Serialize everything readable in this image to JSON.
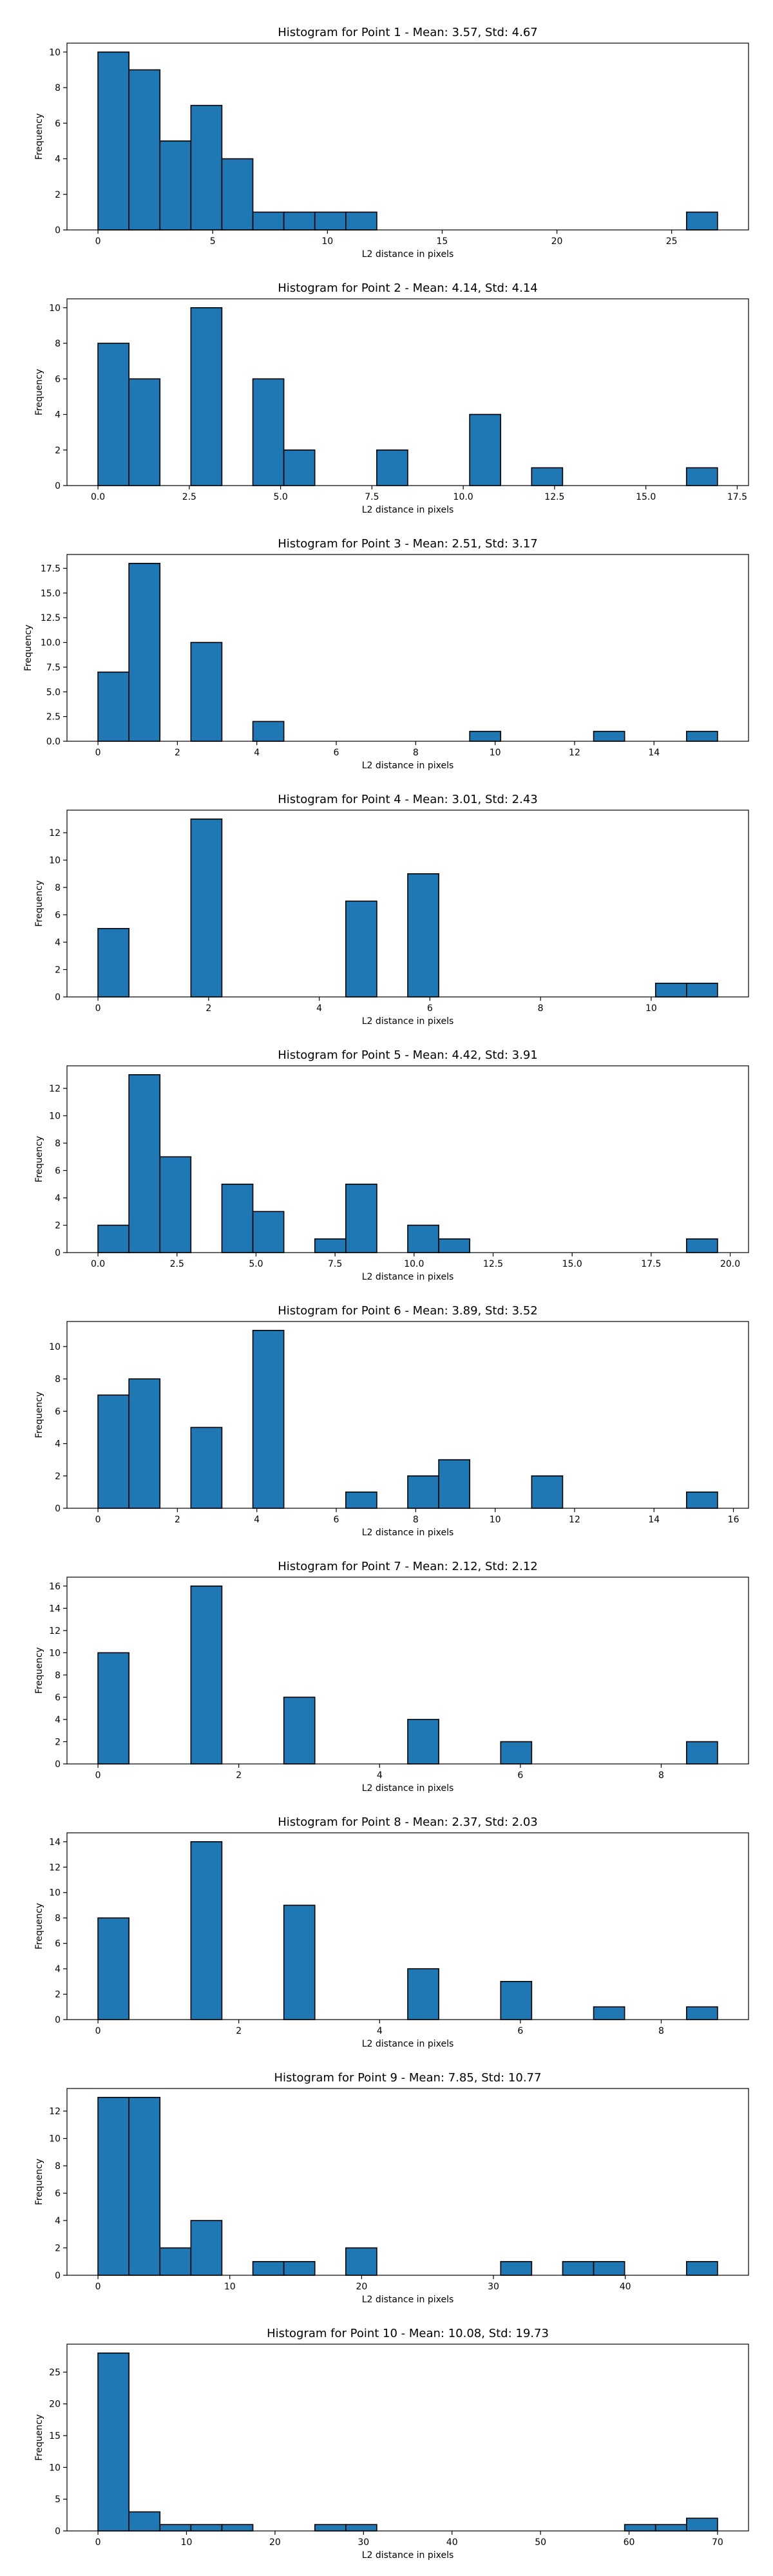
{
  "chart_data": [
    {
      "type": "bar",
      "title": "Histogram for Point 1 - Mean: 3.57, Std: 4.67",
      "xlabel": "L2 distance in pixels",
      "ylabel": "Frequency",
      "bin_start": 0.0,
      "bin_width": 1.35,
      "counts": [
        10,
        9,
        5,
        7,
        4,
        1,
        1,
        1,
        1,
        0,
        0,
        0,
        0,
        0,
        0,
        0,
        0,
        0,
        0,
        1
      ],
      "xlim": [
        -1.35,
        28.35
      ],
      "ylim": [
        0,
        10.5
      ],
      "xticks": [
        0,
        5,
        10,
        15,
        20,
        25
      ],
      "xtick_labels": [
        "0",
        "5",
        "10",
        "15",
        "20",
        "25"
      ],
      "yticks": [
        0,
        2,
        4,
        6,
        8,
        10
      ],
      "ytick_labels": [
        "0",
        "2",
        "4",
        "6",
        "8",
        "10"
      ],
      "bar_color": "#1f77b4"
    },
    {
      "type": "bar",
      "title": "Histogram for Point 2 - Mean: 4.14, Std: 4.14",
      "xlabel": "L2 distance in pixels",
      "ylabel": "Frequency",
      "bin_start": 0.0,
      "bin_width": 0.848,
      "counts": [
        8,
        6,
        0,
        10,
        0,
        6,
        2,
        0,
        0,
        2,
        0,
        0,
        4,
        0,
        1,
        0,
        0,
        0,
        0,
        1
      ],
      "xlim": [
        -0.848,
        17.81
      ],
      "ylim": [
        0,
        10.5
      ],
      "xticks": [
        0,
        2.5,
        5,
        7.5,
        10,
        12.5,
        15,
        17.5
      ],
      "xtick_labels": [
        "0.0",
        "2.5",
        "5.0",
        "7.5",
        "10.0",
        "12.5",
        "15.0",
        "17.5"
      ],
      "yticks": [
        0,
        2,
        4,
        6,
        8,
        10
      ],
      "ytick_labels": [
        "0",
        "2",
        "4",
        "6",
        "8",
        "10"
      ],
      "bar_color": "#1f77b4"
    },
    {
      "type": "bar",
      "title": "Histogram for Point 3 - Mean: 2.51, Std: 3.17",
      "xlabel": "L2 distance in pixels",
      "ylabel": "Frequency",
      "bin_start": 0.0,
      "bin_width": 0.78,
      "counts": [
        7,
        18,
        0,
        10,
        0,
        2,
        0,
        0,
        0,
        0,
        0,
        0,
        1,
        0,
        0,
        0,
        1,
        0,
        0,
        1
      ],
      "xlim": [
        -0.78,
        16.38
      ],
      "ylim": [
        0,
        18.9
      ],
      "xticks": [
        0,
        2,
        4,
        6,
        8,
        10,
        12,
        14
      ],
      "xtick_labels": [
        "0",
        "2",
        "4",
        "6",
        "8",
        "10",
        "12",
        "14"
      ],
      "yticks": [
        0,
        2.5,
        5,
        7.5,
        10,
        12.5,
        15,
        17.5
      ],
      "ytick_labels": [
        "0.0",
        "2.5",
        "5.0",
        "7.5",
        "10.0",
        "12.5",
        "15.0",
        "17.5"
      ],
      "bar_color": "#1f77b4"
    },
    {
      "type": "bar",
      "title": "Histogram for Point 4 - Mean: 3.01, Std: 2.43",
      "xlabel": "L2 distance in pixels",
      "ylabel": "Frequency",
      "bin_start": 0.0,
      "bin_width": 0.56,
      "counts": [
        5,
        0,
        0,
        13,
        0,
        0,
        0,
        0,
        7,
        0,
        9,
        0,
        0,
        0,
        0,
        0,
        0,
        0,
        1,
        1
      ],
      "xlim": [
        -0.56,
        11.76
      ],
      "ylim": [
        0,
        13.65
      ],
      "xticks": [
        0,
        2,
        4,
        6,
        8,
        10
      ],
      "xtick_labels": [
        "0",
        "2",
        "4",
        "6",
        "8",
        "10"
      ],
      "yticks": [
        0,
        2,
        4,
        6,
        8,
        10,
        12
      ],
      "ytick_labels": [
        "0",
        "2",
        "4",
        "6",
        "8",
        "10",
        "12"
      ],
      "bar_color": "#1f77b4"
    },
    {
      "type": "bar",
      "title": "Histogram for Point 5 - Mean: 4.42, Std: 3.91",
      "xlabel": "L2 distance in pixels",
      "ylabel": "Frequency",
      "bin_start": 0.0,
      "bin_width": 0.98,
      "counts": [
        2,
        13,
        7,
        0,
        5,
        3,
        0,
        1,
        5,
        0,
        2,
        1,
        0,
        0,
        0,
        0,
        0,
        0,
        0,
        1
      ],
      "xlim": [
        -0.98,
        20.58
      ],
      "ylim": [
        0,
        13.65
      ],
      "xticks": [
        0,
        2.5,
        5,
        7.5,
        10,
        12.5,
        15,
        17.5,
        20
      ],
      "xtick_labels": [
        "0.0",
        "2.5",
        "5.0",
        "7.5",
        "10.0",
        "12.5",
        "15.0",
        "17.5",
        "20.0"
      ],
      "yticks": [
        0,
        2,
        4,
        6,
        8,
        10,
        12
      ],
      "ytick_labels": [
        "0",
        "2",
        "4",
        "6",
        "8",
        "10",
        "12"
      ],
      "bar_color": "#1f77b4"
    },
    {
      "type": "bar",
      "title": "Histogram for Point 6 - Mean: 3.89, Std: 3.52",
      "xlabel": "L2 distance in pixels",
      "ylabel": "Frequency",
      "bin_start": 0.0,
      "bin_width": 0.78,
      "counts": [
        7,
        8,
        0,
        5,
        0,
        11,
        0,
        0,
        1,
        0,
        2,
        3,
        0,
        0,
        2,
        0,
        0,
        0,
        0,
        1
      ],
      "xlim": [
        -0.78,
        16.38
      ],
      "ylim": [
        0,
        11.55
      ],
      "xticks": [
        0,
        2,
        4,
        6,
        8,
        10,
        12,
        14,
        16
      ],
      "xtick_labels": [
        "0",
        "2",
        "4",
        "6",
        "8",
        "10",
        "12",
        "14",
        "16"
      ],
      "yticks": [
        0,
        2,
        4,
        6,
        8,
        10
      ],
      "ytick_labels": [
        "0",
        "2",
        "4",
        "6",
        "8",
        "10"
      ],
      "bar_color": "#1f77b4"
    },
    {
      "type": "bar",
      "title": "Histogram for Point 7 - Mean: 2.12, Std: 2.12",
      "xlabel": "L2 distance in pixels",
      "ylabel": "Frequency",
      "bin_start": 0.0,
      "bin_width": 0.44,
      "counts": [
        10,
        0,
        0,
        16,
        0,
        0,
        6,
        0,
        0,
        0,
        4,
        0,
        0,
        2,
        0,
        0,
        0,
        0,
        0,
        2
      ],
      "xlim": [
        -0.44,
        9.24
      ],
      "ylim": [
        0,
        16.8
      ],
      "xticks": [
        0,
        2,
        4,
        6,
        8
      ],
      "xtick_labels": [
        "0",
        "2",
        "4",
        "6",
        "8"
      ],
      "yticks": [
        0,
        2,
        4,
        6,
        8,
        10,
        12,
        14,
        16
      ],
      "ytick_labels": [
        "0",
        "2",
        "4",
        "6",
        "8",
        "10",
        "12",
        "14",
        "16"
      ],
      "bar_color": "#1f77b4"
    },
    {
      "type": "bar",
      "title": "Histogram for Point 8 - Mean: 2.37, Std: 2.03",
      "xlabel": "L2 distance in pixels",
      "ylabel": "Frequency",
      "bin_start": 0.0,
      "bin_width": 0.44,
      "counts": [
        8,
        0,
        0,
        14,
        0,
        0,
        9,
        0,
        0,
        0,
        4,
        0,
        0,
        3,
        0,
        0,
        1,
        0,
        0,
        1
      ],
      "xlim": [
        -0.44,
        9.24
      ],
      "ylim": [
        0,
        14.7
      ],
      "xticks": [
        0,
        2,
        4,
        6,
        8
      ],
      "xtick_labels": [
        "0",
        "2",
        "4",
        "6",
        "8"
      ],
      "yticks": [
        0,
        2,
        4,
        6,
        8,
        10,
        12,
        14
      ],
      "ytick_labels": [
        "0",
        "2",
        "4",
        "6",
        "8",
        "10",
        "12",
        "14"
      ],
      "bar_color": "#1f77b4"
    },
    {
      "type": "bar",
      "title": "Histogram for Point 9 - Mean: 7.85, Std: 10.77",
      "xlabel": "L2 distance in pixels",
      "ylabel": "Frequency",
      "bin_start": 0.0,
      "bin_width": 2.35,
      "counts": [
        13,
        13,
        2,
        4,
        0,
        1,
        1,
        0,
        2,
        0,
        0,
        0,
        0,
        1,
        0,
        1,
        1,
        0,
        0,
        1
      ],
      "xlim": [
        -2.35,
        49.35
      ],
      "ylim": [
        0,
        13.65
      ],
      "xticks": [
        0,
        10,
        20,
        30,
        40
      ],
      "xtick_labels": [
        "0",
        "10",
        "20",
        "30",
        "40"
      ],
      "yticks": [
        0,
        2,
        4,
        6,
        8,
        10,
        12
      ],
      "ytick_labels": [
        "0",
        "2",
        "4",
        "6",
        "8",
        "10",
        "12"
      ],
      "bar_color": "#1f77b4"
    },
    {
      "type": "bar",
      "title": "Histogram for Point 10 - Mean: 10.08, Std: 19.73",
      "xlabel": "L2 distance in pixels",
      "ylabel": "Frequency",
      "bin_start": 0.0,
      "bin_width": 3.5,
      "counts": [
        28,
        3,
        1,
        1,
        1,
        0,
        0,
        1,
        1,
        0,
        0,
        0,
        0,
        0,
        0,
        0,
        0,
        1,
        1,
        2
      ],
      "xlim": [
        -3.5,
        73.5
      ],
      "ylim": [
        0,
        29.4
      ],
      "xticks": [
        0,
        10,
        20,
        30,
        40,
        50,
        60,
        70
      ],
      "xtick_labels": [
        "0",
        "10",
        "20",
        "30",
        "40",
        "50",
        "60",
        "70"
      ],
      "yticks": [
        0,
        5,
        10,
        15,
        20,
        25
      ],
      "ytick_labels": [
        "0",
        "5",
        "10",
        "15",
        "20",
        "25"
      ],
      "bar_color": "#1f77b4"
    }
  ]
}
